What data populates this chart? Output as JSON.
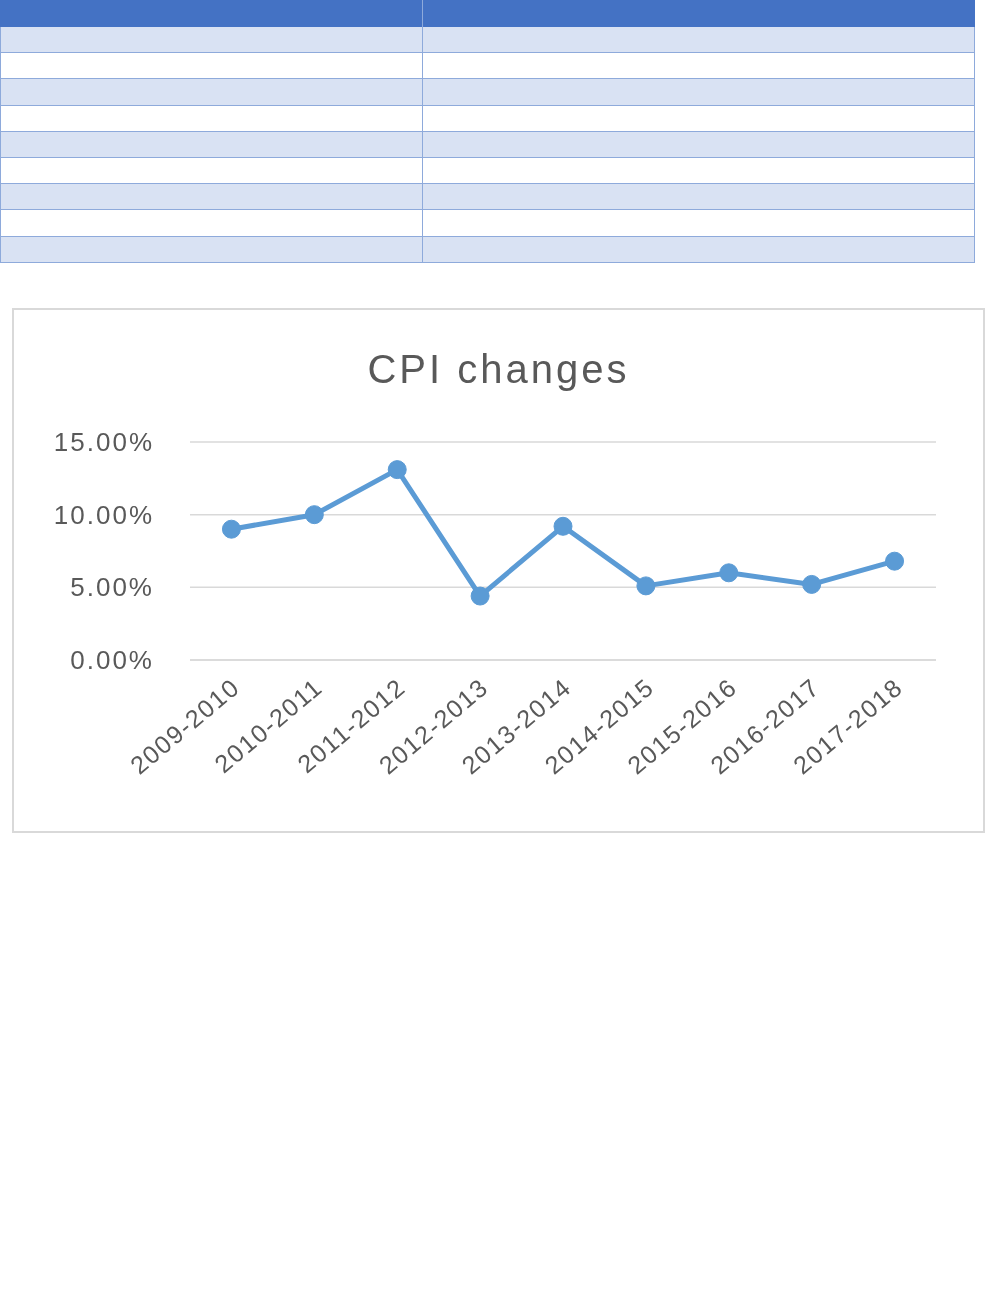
{
  "chart_data": {
    "type": "line",
    "title": "CPI changes",
    "categories": [
      "2009-2010",
      "2010-2011",
      "2011-2012",
      "2012-2013",
      "2013-2014",
      "2014-2015",
      "2015-2016",
      "2016-2017",
      "2017-2018"
    ],
    "series": [
      {
        "color": "#5b9bd5",
        "values": [
          9.0,
          10.0,
          13.1,
          4.4,
          9.2,
          5.1,
          6.0,
          5.2,
          6.8
        ]
      }
    ],
    "ylim": [
      0,
      15
    ],
    "yticks": [
      {
        "value": 0,
        "label": "0.00%"
      },
      {
        "value": 5,
        "label": "5.00%"
      },
      {
        "value": 10,
        "label": "10.00%"
      },
      {
        "value": 15,
        "label": "15.00%"
      }
    ],
    "grid": "y",
    "marker": "circle",
    "line_style": "solid"
  }
}
